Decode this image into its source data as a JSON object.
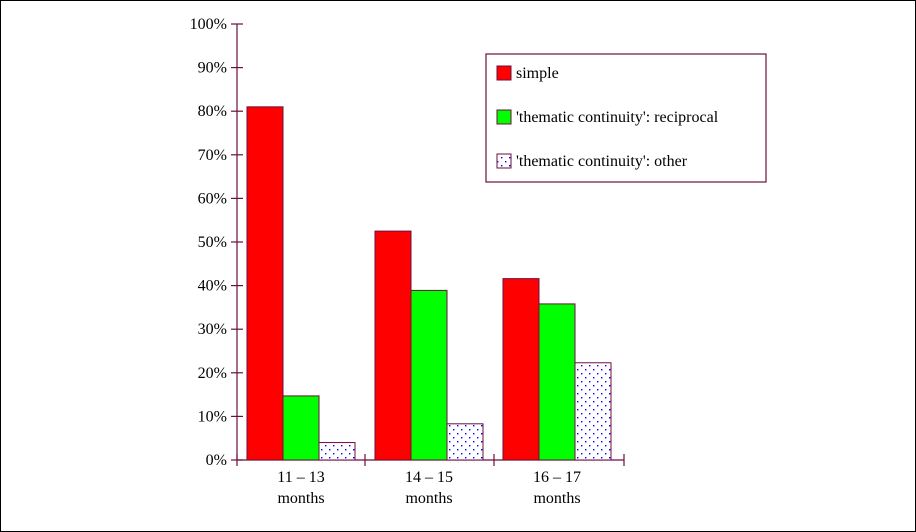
{
  "chart_data": {
    "type": "bar",
    "categories": [
      [
        "11 – 13",
        "months"
      ],
      [
        "14 – 15",
        "months"
      ],
      [
        "16 – 17",
        "months"
      ]
    ],
    "series": [
      {
        "name": "simple",
        "values": [
          81,
          52.5,
          41.6
        ],
        "color": "#ff0000",
        "pattern": "solid"
      },
      {
        "name": "'thematic continuity': reciprocal",
        "values": [
          14.7,
          38.9,
          35.8
        ],
        "color": "#00ff00",
        "pattern": "solid"
      },
      {
        "name": "'thematic continuity': other",
        "values": [
          4,
          8.3,
          22.3
        ],
        "color": "#0000ff",
        "pattern": "dots"
      }
    ],
    "ylim": [
      0,
      100
    ],
    "yticks": [
      "0%",
      "10%",
      "20%",
      "30%",
      "40%",
      "50%",
      "60%",
      "70%",
      "80%",
      "90%",
      "100%"
    ],
    "axis_color": "#6b0f3c",
    "grid": false,
    "legend_position": "top-right",
    "title": "",
    "xlabel": "",
    "ylabel": ""
  }
}
